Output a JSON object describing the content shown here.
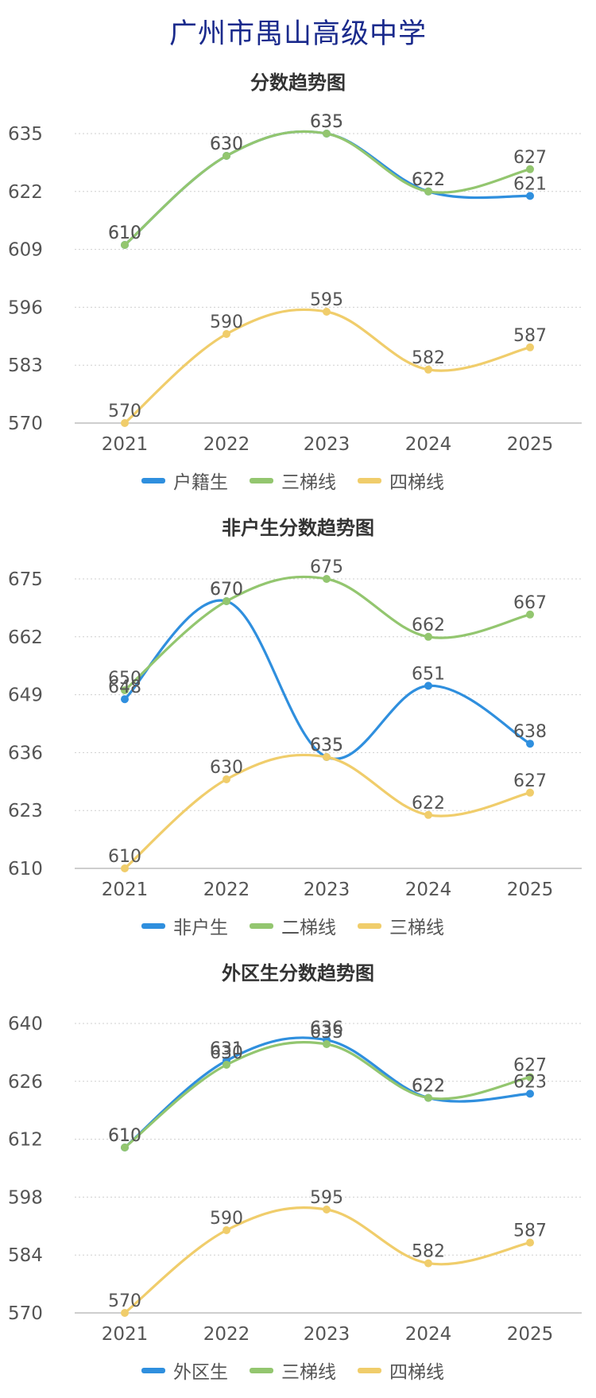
{
  "page": {
    "title": "广州市禺山高级中学"
  },
  "colors": {
    "blue": "#2f8fde",
    "green": "#93c66f",
    "yellow": "#f0cd6b",
    "grid": "#cfcfcf",
    "axis": "#bdbdbd",
    "text": "#555555",
    "title": "#1a2a8c"
  },
  "chart_data": [
    {
      "type": "line",
      "title": "分数趋势图",
      "categories": [
        "2021",
        "2022",
        "2023",
        "2024",
        "2025"
      ],
      "yticks": [
        "570",
        "583",
        "596",
        "609",
        "622",
        "635"
      ],
      "ylim": [
        570,
        635
      ],
      "grid": true,
      "legend_position": "bottom",
      "series": [
        {
          "name": "户籍生",
          "color": "#2f8fde",
          "values": [
            610,
            630,
            635,
            622,
            621
          ]
        },
        {
          "name": "三梯线",
          "color": "#93c66f",
          "values": [
            610,
            630,
            635,
            622,
            627
          ]
        },
        {
          "name": "四梯线",
          "color": "#f0cd6b",
          "values": [
            570,
            590,
            595,
            582,
            587
          ]
        }
      ]
    },
    {
      "type": "line",
      "title": "非户生分数趋势图",
      "categories": [
        "2021",
        "2022",
        "2023",
        "2024",
        "2025"
      ],
      "yticks": [
        "610",
        "623",
        "636",
        "649",
        "662",
        "675"
      ],
      "ylim": [
        610,
        675
      ],
      "grid": true,
      "legend_position": "bottom",
      "series": [
        {
          "name": "非户生",
          "color": "#2f8fde",
          "values": [
            648,
            670,
            635,
            651,
            638
          ]
        },
        {
          "name": "二梯线",
          "color": "#93c66f",
          "values": [
            650,
            670,
            675,
            662,
            667
          ]
        },
        {
          "name": "三梯线",
          "color": "#f0cd6b",
          "values": [
            610,
            630,
            635,
            622,
            627
          ]
        }
      ]
    },
    {
      "type": "line",
      "title": "外区生分数趋势图",
      "categories": [
        "2021",
        "2022",
        "2023",
        "2024",
        "2025"
      ],
      "yticks": [
        "570",
        "584",
        "598",
        "612",
        "626",
        "640"
      ],
      "ylim": [
        570,
        640
      ],
      "grid": true,
      "legend_position": "bottom",
      "series": [
        {
          "name": "外区生",
          "color": "#2f8fde",
          "values": [
            610,
            631,
            636,
            622,
            623
          ]
        },
        {
          "name": "三梯线",
          "color": "#93c66f",
          "values": [
            610,
            630,
            635,
            622,
            627
          ]
        },
        {
          "name": "四梯线",
          "color": "#f0cd6b",
          "values": [
            570,
            590,
            595,
            582,
            587
          ]
        }
      ]
    }
  ]
}
